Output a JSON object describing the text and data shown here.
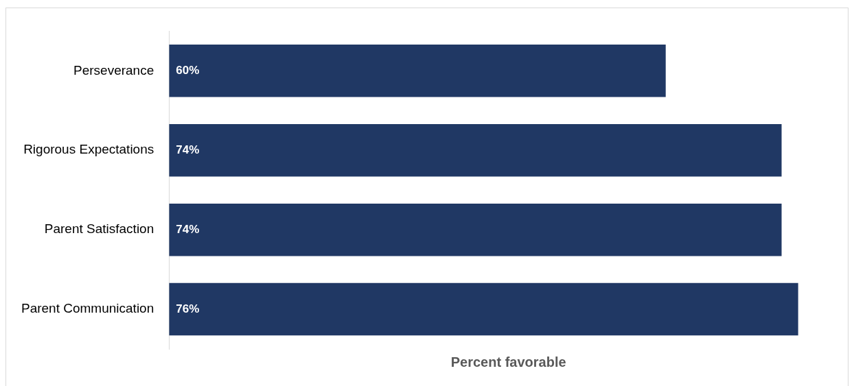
{
  "chart_data": {
    "type": "bar",
    "orientation": "horizontal",
    "categories": [
      "Perseverance",
      "Rigorous Expectations",
      "Parent Satisfaction",
      "Parent Communication"
    ],
    "values": [
      60,
      74,
      74,
      76
    ],
    "color": "#203864",
    "value_labels": [
      "60%",
      "74%",
      "74%",
      "76%"
    ],
    "xlabel": "Percent favorable",
    "xlim": [
      0,
      82
    ],
    "grid": false,
    "legend": false
  }
}
